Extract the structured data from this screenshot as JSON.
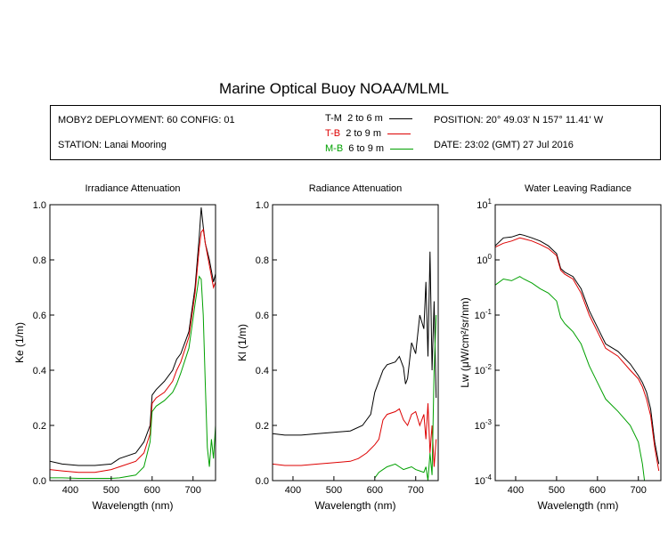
{
  "title": "Marine Optical Buoy NOAA/MLML",
  "info": {
    "deployment": "MOBY2 DEPLOYMENT: 60 CONFIG: 01",
    "station": "STATION: Lanai Mooring",
    "position": "POSITION: 20° 49.03' N   157° 11.41' W",
    "date": "DATE: 23:02 (GMT) 27 Jul 2016",
    "legend": [
      {
        "code": "T-M",
        "range": "2 to 6  m",
        "color": "#000000"
      },
      {
        "code": "T-B",
        "range": "2 to 9  m",
        "color": "#dd0000"
      },
      {
        "code": "M-B",
        "range": "6 to 9  m",
        "color": "#00a000"
      }
    ]
  },
  "chart_data": [
    {
      "type": "line",
      "title": "Irradiance Attenuation",
      "xlabel": "Wavelength (nm)",
      "ylabel": "Ke  (1/m)",
      "xlim": [
        350,
        755
      ],
      "ylim": [
        0,
        1.0
      ],
      "xticks": [
        400,
        500,
        600,
        700
      ],
      "yticks": [
        0.0,
        0.2,
        0.4,
        0.6,
        0.8,
        1.0
      ],
      "ytick_labels": [
        "0.0",
        "0.2",
        "0.4",
        "0.6",
        "0.8",
        "1.0"
      ],
      "series": [
        {
          "name": "T-M",
          "color": "#000000",
          "x": [
            350,
            380,
            420,
            460,
            500,
            520,
            560,
            580,
            595,
            600,
            610,
            630,
            650,
            660,
            670,
            690,
            705,
            715,
            720,
            725,
            730,
            740,
            750,
            755
          ],
          "y": [
            0.07,
            0.06,
            0.055,
            0.055,
            0.06,
            0.08,
            0.1,
            0.14,
            0.2,
            0.31,
            0.33,
            0.36,
            0.4,
            0.44,
            0.46,
            0.54,
            0.7,
            0.88,
            0.99,
            0.92,
            0.86,
            0.8,
            0.72,
            0.75
          ]
        },
        {
          "name": "T-B",
          "color": "#dd0000",
          "x": [
            350,
            380,
            420,
            460,
            500,
            520,
            560,
            580,
            595,
            600,
            610,
            630,
            650,
            660,
            670,
            690,
            705,
            715,
            720,
            725,
            730,
            740,
            750,
            755
          ],
          "y": [
            0.04,
            0.035,
            0.03,
            0.03,
            0.04,
            0.05,
            0.07,
            0.1,
            0.17,
            0.28,
            0.3,
            0.32,
            0.36,
            0.4,
            0.43,
            0.52,
            0.68,
            0.84,
            0.9,
            0.91,
            0.86,
            0.78,
            0.7,
            0.72
          ]
        },
        {
          "name": "M-B",
          "color": "#00a000",
          "x": [
            350,
            380,
            420,
            460,
            500,
            520,
            560,
            580,
            595,
            600,
            610,
            630,
            650,
            660,
            670,
            690,
            705,
            715,
            720,
            725,
            730,
            735,
            740,
            745,
            750,
            755
          ],
          "y": [
            0.01,
            0.01,
            0.008,
            0.008,
            0.008,
            0.01,
            0.02,
            0.05,
            0.14,
            0.25,
            0.27,
            0.29,
            0.32,
            0.35,
            0.39,
            0.48,
            0.64,
            0.74,
            0.73,
            0.6,
            0.35,
            0.12,
            0.05,
            0.15,
            0.08,
            0.2
          ]
        }
      ]
    },
    {
      "type": "line",
      "title": "Radiance Attenuation",
      "xlabel": "Wavelength (nm)",
      "ylabel": "Kl  (1/m)",
      "xlim": [
        350,
        755
      ],
      "ylim": [
        0,
        1.0
      ],
      "xticks": [
        400,
        500,
        600,
        700
      ],
      "yticks": [
        0.0,
        0.2,
        0.4,
        0.6,
        0.8,
        1.0
      ],
      "ytick_labels": [
        "0.0",
        "0.2",
        "0.4",
        "0.6",
        "0.8",
        "1.0"
      ],
      "series": [
        {
          "name": "T-M",
          "color": "#000000",
          "x": [
            350,
            380,
            420,
            460,
            500,
            540,
            570,
            590,
            600,
            610,
            620,
            630,
            650,
            660,
            670,
            675,
            680,
            690,
            700,
            710,
            720,
            725,
            730,
            735,
            740,
            745,
            750
          ],
          "y": [
            0.17,
            0.165,
            0.165,
            0.17,
            0.175,
            0.18,
            0.2,
            0.24,
            0.32,
            0.36,
            0.4,
            0.42,
            0.43,
            0.45,
            0.41,
            0.35,
            0.37,
            0.5,
            0.46,
            0.6,
            0.55,
            0.72,
            0.45,
            0.83,
            0.4,
            0.65,
            0.3
          ]
        },
        {
          "name": "T-B",
          "color": "#dd0000",
          "x": [
            350,
            380,
            420,
            460,
            500,
            540,
            560,
            580,
            600,
            610,
            620,
            630,
            650,
            660,
            670,
            680,
            690,
            700,
            710,
            720,
            725,
            730,
            735,
            740,
            745,
            750
          ],
          "y": [
            0.06,
            0.055,
            0.055,
            0.06,
            0.065,
            0.07,
            0.08,
            0.1,
            0.13,
            0.15,
            0.22,
            0.24,
            0.25,
            0.26,
            0.22,
            0.2,
            0.24,
            0.25,
            0.2,
            0.24,
            0.15,
            0.28,
            0.1,
            0.2,
            0.05,
            0.15
          ]
        },
        {
          "name": "M-B",
          "color": "#00a000",
          "x": [
            600,
            610,
            620,
            630,
            650,
            660,
            670,
            680,
            690,
            700,
            710,
            720,
            725,
            730,
            735,
            740,
            745,
            750
          ],
          "y": [
            0.01,
            0.03,
            0.04,
            0.05,
            0.06,
            0.05,
            0.04,
            0.045,
            0.05,
            0.04,
            0.035,
            0.03,
            0.05,
            0.0,
            0.1,
            0.02,
            0.4,
            0.6
          ]
        }
      ]
    },
    {
      "type": "line",
      "title": "Water Leaving Radiance",
      "xlabel": "Wavelength (nm)",
      "ylabel": "Lw  (μW/cm²/sr/nm)",
      "xlim": [
        350,
        755
      ],
      "ylim": [
        0.0001,
        10
      ],
      "log_y": true,
      "xticks": [
        400,
        500,
        600,
        700
      ],
      "yticks": [
        0.0001,
        0.001,
        0.01,
        0.1,
        1,
        10
      ],
      "ytick_labels": [
        "10^-4",
        "10^-3",
        "10^-2",
        "10^-1",
        "10^0",
        "10^1"
      ],
      "series": [
        {
          "name": "T-M",
          "color": "#000000",
          "x": [
            350,
            370,
            390,
            410,
            420,
            440,
            460,
            480,
            500,
            510,
            520,
            540,
            560,
            580,
            600,
            620,
            650,
            680,
            700,
            710,
            720,
            730,
            740,
            750
          ],
          "y": [
            1.8,
            2.5,
            2.6,
            2.9,
            2.8,
            2.5,
            2.2,
            1.8,
            1.3,
            0.7,
            0.6,
            0.5,
            0.3,
            0.12,
            0.06,
            0.03,
            0.022,
            0.013,
            0.008,
            0.006,
            0.004,
            0.002,
            0.0005,
            0.0002
          ]
        },
        {
          "name": "T-B",
          "color": "#dd0000",
          "x": [
            350,
            370,
            390,
            410,
            420,
            440,
            460,
            480,
            500,
            510,
            520,
            540,
            560,
            580,
            600,
            620,
            650,
            680,
            700,
            710,
            720,
            730,
            740,
            750
          ],
          "y": [
            1.7,
            2.0,
            2.2,
            2.5,
            2.4,
            2.2,
            1.9,
            1.6,
            1.2,
            0.65,
            0.55,
            0.45,
            0.25,
            0.1,
            0.05,
            0.025,
            0.018,
            0.01,
            0.007,
            0.005,
            0.003,
            0.0015,
            0.0004,
            0.00015
          ]
        },
        {
          "name": "M-B",
          "color": "#00a000",
          "x": [
            350,
            370,
            390,
            410,
            420,
            440,
            460,
            480,
            500,
            510,
            520,
            540,
            560,
            580,
            600,
            620,
            650,
            680,
            700,
            710,
            715
          ],
          "y": [
            0.35,
            0.45,
            0.42,
            0.5,
            0.45,
            0.38,
            0.3,
            0.25,
            0.18,
            0.09,
            0.07,
            0.05,
            0.03,
            0.012,
            0.006,
            0.003,
            0.0018,
            0.001,
            0.0005,
            0.0002,
            0.0001
          ]
        }
      ]
    }
  ]
}
